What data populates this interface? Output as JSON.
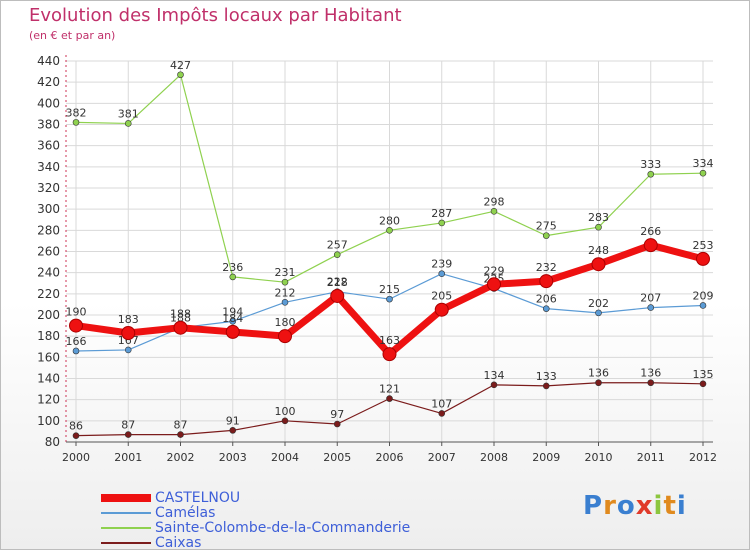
{
  "title": "Evolution des Impôts locaux par Habitant",
  "subtitle": "(en € et par an)",
  "logo": "Proxiti",
  "colors": {
    "title": "#c0306a",
    "legend_text": "#3e5fd8",
    "grid": "#d9d9d9",
    "axis": "#555555"
  },
  "chart_data": {
    "type": "line",
    "x": [
      "2000",
      "2001",
      "2002",
      "2003",
      "2004",
      "2005",
      "2006",
      "2007",
      "2008",
      "2009",
      "2010",
      "2011",
      "2012"
    ],
    "ylim": [
      80,
      440
    ],
    "yticks": [
      80,
      100,
      120,
      140,
      160,
      180,
      200,
      220,
      240,
      260,
      280,
      300,
      320,
      340,
      360,
      380,
      400,
      420,
      440
    ],
    "grid": true,
    "legend_position": "bottom-left",
    "series": [
      {
        "name": "Sainte-Colombe-de-la-Commanderie",
        "color": "#8fd14f",
        "values": [
          382,
          381,
          427,
          236,
          231,
          257,
          280,
          287,
          298,
          275,
          283,
          333,
          334
        ]
      },
      {
        "name": "Camélas",
        "color": "#5b9bd5",
        "values": [
          166,
          167,
          188,
          194,
          212,
          222,
          215,
          239,
          225,
          206,
          202,
          207,
          209
        ]
      },
      {
        "name": "Caixas",
        "color": "#7b1c1c",
        "values": [
          86,
          87,
          87,
          91,
          100,
          97,
          121,
          107,
          134,
          133,
          136,
          136,
          135
        ]
      },
      {
        "name": "CASTELNOU",
        "color": "#ee1111",
        "values": [
          190,
          183,
          188,
          184,
          180,
          218,
          163,
          205,
          229,
          232,
          248,
          266,
          253
        ]
      }
    ],
    "legend_order": [
      "CASTELNOU",
      "Camélas",
      "Sainte-Colombe-de-la-Commanderie",
      "Caixas"
    ]
  }
}
